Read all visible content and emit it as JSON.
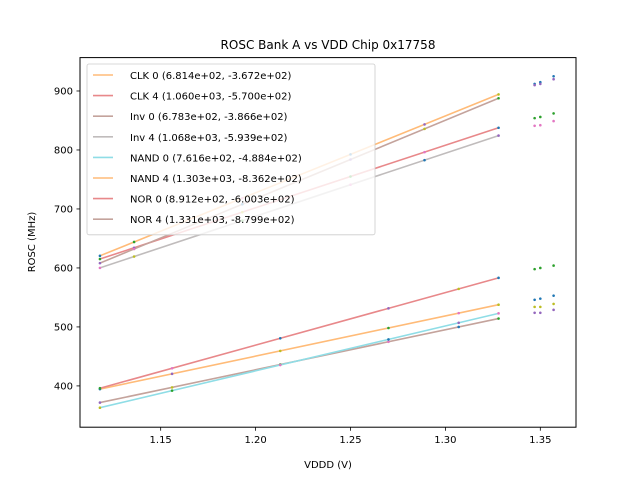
{
  "chart_data": {
    "type": "line",
    "title": "ROSC Bank A vs VDD Chip 0x17758",
    "xlabel": "VDDD (V)",
    "ylabel": "ROSC (MHz)",
    "xlim": [
      1.1075,
      1.3688
    ],
    "ylim": [
      330,
      956.6
    ],
    "xticks": [
      1.15,
      1.2,
      1.25,
      1.3,
      1.35
    ],
    "xtick_labels": [
      "1.15",
      "1.20",
      "1.25",
      "1.30",
      "1.35"
    ],
    "yticks": [
      400,
      500,
      600,
      700,
      800,
      900
    ],
    "ytick_labels": [
      "400",
      "500",
      "600",
      "700",
      "800",
      "900"
    ],
    "grid": false,
    "legend_position": "upper-left",
    "fit_x_range": [
      1.118,
      1.328
    ],
    "fits": [
      {
        "name": "CLK 0",
        "label": "CLK 0 (6.814e+02, -3.672e+02)",
        "slope": 681.4,
        "intercept": -367.2,
        "color": "#ffbb78"
      },
      {
        "name": "CLK 4",
        "label": "CLK 4 (1.060e+03, -5.700e+02)",
        "slope": 1060.0,
        "intercept": -570.0,
        "color": "#e8888a"
      },
      {
        "name": "Inv 0",
        "label": "Inv 0 (6.783e+02, -3.866e+02)",
        "slope": 678.3,
        "intercept": -386.6,
        "color": "#c4a39c"
      },
      {
        "name": "Inv 4",
        "label": "Inv 4 (1.068e+03, -5.939e+02)",
        "slope": 1068.0,
        "intercept": -593.9,
        "color": "#c0bcbc"
      },
      {
        "name": "NAND 0",
        "label": "NAND 0 (7.616e+02, -4.884e+02)",
        "slope": 761.6,
        "intercept": -488.4,
        "color": "#8fdde6"
      },
      {
        "name": "NAND 4",
        "label": "NAND 4 (1.303e+03, -8.362e+02)",
        "slope": 1303.0,
        "intercept": -836.2,
        "color": "#ffbb78"
      },
      {
        "name": "NOR 0",
        "label": "NOR 0 (8.912e+02, -6.003e+02)",
        "slope": 891.2,
        "intercept": -600.3,
        "color": "#e8888a"
      },
      {
        "name": "NOR 4",
        "label": "NOR 4 (1.331e+03, -8.799e+02)",
        "slope": 1331.0,
        "intercept": -879.9,
        "color": "#c4a39c"
      }
    ],
    "scatter_x": [
      1.118,
      1.136,
      1.156,
      1.193,
      1.213,
      1.25,
      1.27,
      1.289,
      1.307,
      1.328
    ],
    "outlier_points": [
      {
        "x": 1.347,
        "y": 912,
        "color": "#1f77b4"
      },
      {
        "x": 1.35,
        "y": 915,
        "color": "#1f77b4"
      },
      {
        "x": 1.357,
        "y": 925,
        "color": "#1f77b4"
      },
      {
        "x": 1.347,
        "y": 910,
        "color": "#9467bd"
      },
      {
        "x": 1.35,
        "y": 912,
        "color": "#9467bd"
      },
      {
        "x": 1.357,
        "y": 920,
        "color": "#9467bd"
      },
      {
        "x": 1.347,
        "y": 854,
        "color": "#2ca02c"
      },
      {
        "x": 1.35,
        "y": 856,
        "color": "#2ca02c"
      },
      {
        "x": 1.357,
        "y": 862,
        "color": "#2ca02c"
      },
      {
        "x": 1.347,
        "y": 841,
        "color": "#e377c2"
      },
      {
        "x": 1.35,
        "y": 842,
        "color": "#e377c2"
      },
      {
        "x": 1.357,
        "y": 849,
        "color": "#e377c2"
      },
      {
        "x": 1.347,
        "y": 598,
        "color": "#2ca02c"
      },
      {
        "x": 1.35,
        "y": 600,
        "color": "#2ca02c"
      },
      {
        "x": 1.357,
        "y": 604,
        "color": "#2ca02c"
      },
      {
        "x": 1.347,
        "y": 546,
        "color": "#1f77b4"
      },
      {
        "x": 1.35,
        "y": 548,
        "color": "#1f77b4"
      },
      {
        "x": 1.357,
        "y": 553,
        "color": "#1f77b4"
      },
      {
        "x": 1.347,
        "y": 534,
        "color": "#bcbd22"
      },
      {
        "x": 1.35,
        "y": 534,
        "color": "#bcbd22"
      },
      {
        "x": 1.357,
        "y": 539,
        "color": "#bcbd22"
      },
      {
        "x": 1.347,
        "y": 524,
        "color": "#9467bd"
      },
      {
        "x": 1.35,
        "y": 524,
        "color": "#9467bd"
      },
      {
        "x": 1.357,
        "y": 529,
        "color": "#9467bd"
      }
    ],
    "scatter_colors": [
      "#1f77b4",
      "#2ca02c",
      "#9467bd",
      "#e377c2",
      "#bcbd22"
    ]
  }
}
